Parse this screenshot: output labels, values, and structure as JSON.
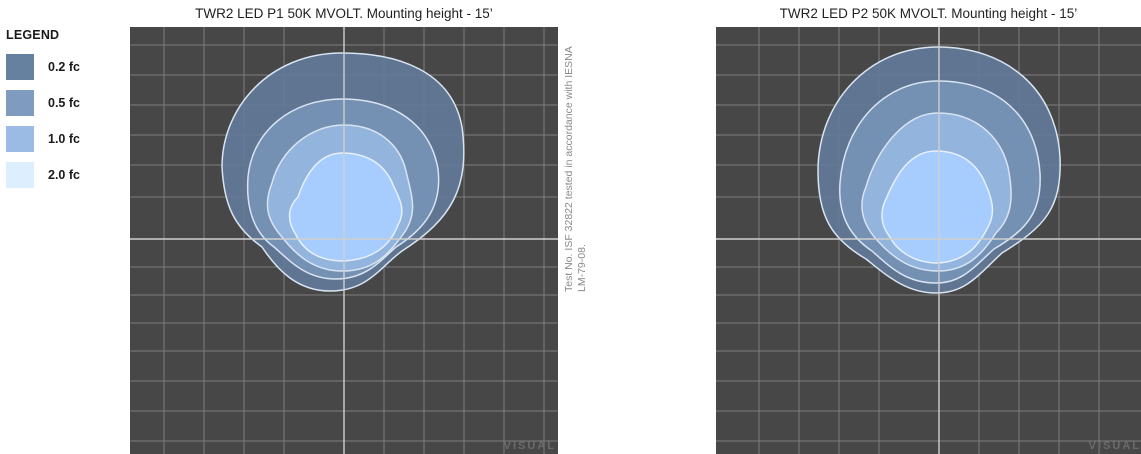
{
  "legend": {
    "title": "LEGEND",
    "items": [
      {
        "label": "0.2 fc",
        "color": "#66809f"
      },
      {
        "label": "0.5 fc",
        "color": "#7f9cc0"
      },
      {
        "label": "1.0 fc",
        "color": "#9bbbe4"
      },
      {
        "label": "2.0 fc",
        "color": "#ddeeff"
      }
    ]
  },
  "panels": [
    {
      "title": "TWR2 LED P1 50K MVOLT. Mounting height - 15’",
      "watermark": "VISUAL"
    },
    {
      "title": "TWR2 LED P2 50K MVOLT. Mounting height - 15’",
      "watermark": "VISUAL"
    }
  ],
  "note": "Test No. ISF 32822 tested in accordance with IESNA LM-79-08.",
  "colors": {
    "background": "#474747",
    "grid": "#8a8a8a",
    "axis": "#cfcfcf",
    "contour_stroke": "#d9e4f2",
    "fill_0_2": "#627a98",
    "fill_0_5": "#7592b6",
    "fill_1_0": "#93b5de",
    "fill_2_0": "#a7cdff"
  }
}
